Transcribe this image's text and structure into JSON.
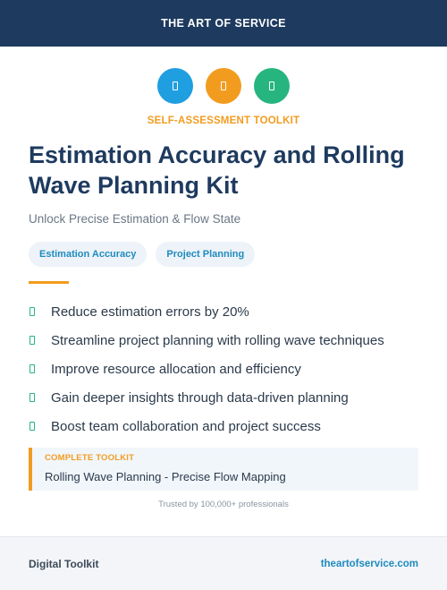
{
  "header": {
    "brand": "THE ART OF SERVICE"
  },
  "icons": [
    {
      "name": "document-icon",
      "color": "#1f9ee0"
    },
    {
      "name": "document-icon",
      "color": "#f29c1f"
    },
    {
      "name": "document-icon",
      "color": "#26b57f"
    }
  ],
  "kicker": "SELF-ASSESSMENT TOOLKIT",
  "title": "Estimation Accuracy and Rolling Wave Planning Kit",
  "subtitle": "Unlock Precise Estimation & Flow State",
  "tags": [
    "Estimation Accuracy",
    "Project Planning"
  ],
  "benefits": [
    "Reduce estimation errors by 20%",
    "Streamline project planning with rolling wave techniques",
    "Improve resource allocation and efficiency",
    "Gain deeper insights through data-driven planning",
    "Boost team collaboration and project success"
  ],
  "toolkit": {
    "label": "COMPLETE TOOLKIT",
    "name": "Rolling Wave Planning - Precise Flow Mapping"
  },
  "trusted": "Trusted by 100,000+ professionals",
  "footer": {
    "left": "Digital Toolkit",
    "right": "theartofservice.com"
  },
  "colors": {
    "navy": "#1e3a5f",
    "orange": "#f29c1f",
    "blue": "#1f9ee0",
    "green": "#26b57f"
  }
}
